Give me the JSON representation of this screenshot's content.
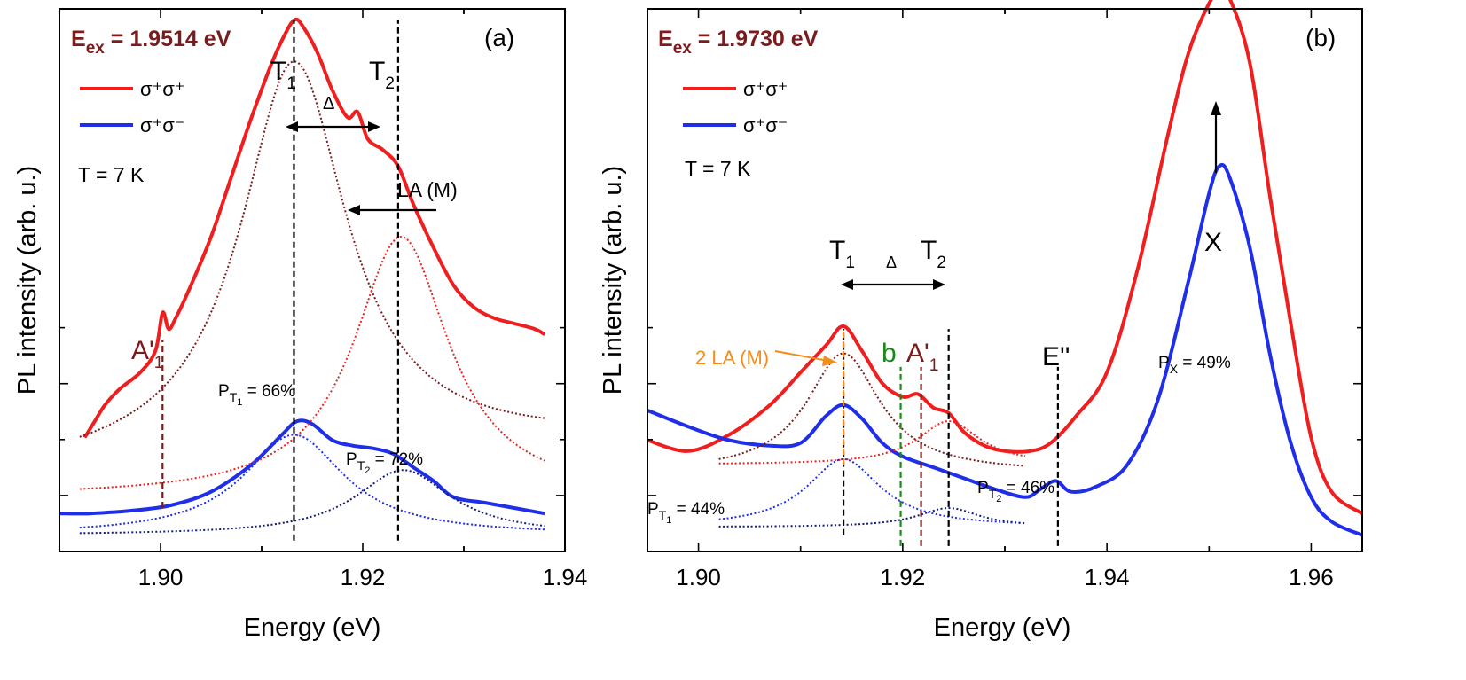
{
  "colors": {
    "red": "#ef1f1f",
    "blue": "#1f2ee8",
    "darkred": "#7b1b1b",
    "darkblue": "#141c7a",
    "orange": "#f28c1a",
    "green": "#1a8a1a",
    "black": "#000000"
  },
  "chart_data": [
    {
      "type": "line",
      "panel": "(a)",
      "excitation": {
        "main": "E",
        "sub": "ex",
        "rest": " = 1.9514 eV"
      },
      "temperature": "T = 7 K",
      "xlabel": "Energy (eV)",
      "ylabel": "PL intensity (arb. u.)",
      "xlim": [
        1.89,
        1.94
      ],
      "ylim": [
        0,
        10
      ],
      "x_ticks": [
        1.9,
        1.92,
        1.94
      ],
      "x_tick_labels": [
        "1.90",
        "1.92",
        "1.94"
      ],
      "legend": [
        {
          "label": "σ⁺σ⁺",
          "color": "#ef1f1f"
        },
        {
          "label": "σ⁺σ⁻",
          "color": "#1f2ee8"
        }
      ],
      "series": [
        {
          "name": "σ⁺σ⁺",
          "style": "solid",
          "color": "#ef1f1f",
          "x": [
            1.8925,
            1.8935,
            1.8945,
            1.896,
            1.898,
            1.8995,
            1.9002,
            1.9008,
            1.9015,
            1.903,
            1.905,
            1.907,
            1.909,
            1.911,
            1.9125,
            1.9133,
            1.914,
            1.9155,
            1.917,
            1.9185,
            1.9195,
            1.9205,
            1.922,
            1.9235,
            1.925,
            1.927,
            1.929,
            1.931,
            1.933,
            1.935,
            1.937,
            1.938
          ],
          "y": [
            2.1,
            2.4,
            2.7,
            3.0,
            3.3,
            3.7,
            4.4,
            4.1,
            4.3,
            4.9,
            5.8,
            6.9,
            8.0,
            9.0,
            9.6,
            9.8,
            9.7,
            9.2,
            8.5,
            8.0,
            8.1,
            7.6,
            7.4,
            7.1,
            6.4,
            5.6,
            4.9,
            4.5,
            4.3,
            4.2,
            4.1,
            4.0
          ]
        },
        {
          "name": "σ⁺σ⁻",
          "style": "solid",
          "color": "#1f2ee8",
          "x": [
            1.89,
            1.893,
            1.897,
            1.901,
            1.905,
            1.909,
            1.912,
            1.9135,
            1.915,
            1.917,
            1.919,
            1.921,
            1.923,
            1.925,
            1.927,
            1.929,
            1.932,
            1.935,
            1.938
          ],
          "y": [
            0.7,
            0.7,
            0.75,
            0.85,
            1.1,
            1.6,
            2.15,
            2.4,
            2.35,
            2.05,
            1.95,
            1.9,
            1.8,
            1.55,
            1.3,
            1.0,
            0.9,
            0.8,
            0.7
          ]
        },
        {
          "name": "T1 fit σ⁺σ⁺",
          "style": "dotted",
          "color": "#7b1b1b",
          "peak": {
            "x0": 1.9132,
            "amp": 7.3,
            "w": 0.0095,
            "base": 1.5,
            "slope": 0.5,
            "from": 1.892,
            "to": 1.938
          }
        },
        {
          "name": "T2 fit σ⁺σ⁺",
          "style": "dotted",
          "color": "#ef1f1f",
          "peak": {
            "x0": 1.9238,
            "amp": 4.8,
            "w": 0.0085,
            "base": 1.0,
            "slope": 0.0,
            "from": 1.892,
            "to": 1.938
          }
        },
        {
          "name": "T1 fit σ⁺σ⁻",
          "style": "dotted",
          "color": "#1f2ee8",
          "peak": {
            "x0": 1.9132,
            "amp": 1.85,
            "w": 0.009,
            "base": 0.3,
            "slope": 0.0,
            "from": 1.892,
            "to": 1.938
          }
        },
        {
          "name": "T2 fit σ⁺σ⁻",
          "style": "dotted",
          "color": "#141c7a",
          "peak": {
            "x0": 1.924,
            "amp": 1.2,
            "w": 0.0085,
            "base": 0.3,
            "slope": 0.0,
            "from": 1.892,
            "to": 1.938
          }
        }
      ],
      "vlines": [
        {
          "x": 1.9002,
          "y0": 0.8,
          "y1": 3.9,
          "color": "#7b1b1b",
          "label": "A'",
          "sub": "1"
        },
        {
          "x": 1.9132,
          "y0": 0.2,
          "y1": 9.8,
          "color": "#000000",
          "label": "T",
          "sub": "1"
        },
        {
          "x": 1.9235,
          "y0": 0.2,
          "y1": 9.8,
          "color": "#000000",
          "label": "T",
          "sub": "2"
        }
      ],
      "annotations": {
        "delta": "Δ",
        "la_label": "LA (M)",
        "p_t1": {
          "pre": "P",
          "sub": "T",
          "subsub": "1",
          "post": " = 66%"
        },
        "p_t2": {
          "pre": "P",
          "sub": "T",
          "subsub": "2",
          "post": " = 72%"
        }
      }
    },
    {
      "type": "line",
      "panel": "(b)",
      "excitation": {
        "main": "E",
        "sub": "ex",
        "rest": " = 1.9730 eV"
      },
      "temperature": "T = 7 K",
      "xlabel": "Energy (eV)",
      "ylabel": "PL intensity (arb. u.)",
      "xlim": [
        1.895,
        1.965
      ],
      "ylim": [
        0,
        10
      ],
      "x_ticks": [
        1.9,
        1.92,
        1.94,
        1.96
      ],
      "x_tick_labels": [
        "1.90",
        "1.92",
        "1.94",
        "1.96"
      ],
      "legend": [
        {
          "label": "σ⁺σ⁺",
          "color": "#ef1f1f"
        },
        {
          "label": "σ⁺σ⁻",
          "color": "#1f2ee8"
        }
      ],
      "series": [
        {
          "name": "σ⁺σ⁺",
          "style": "solid",
          "color": "#ef1f1f",
          "x": [
            1.895,
            1.899,
            1.903,
            1.907,
            1.91,
            1.9125,
            1.9142,
            1.916,
            1.918,
            1.92,
            1.9215,
            1.923,
            1.9245,
            1.926,
            1.928,
            1.93,
            1.9325,
            1.9345,
            1.937,
            1.94,
            1.943,
            1.946,
            1.948,
            1.95,
            1.951,
            1.952,
            1.954,
            1.956,
            1.958,
            1.96,
            1.962,
            1.965
          ],
          "y": [
            2.05,
            1.85,
            2.15,
            2.7,
            3.3,
            3.8,
            4.15,
            3.7,
            3.1,
            2.85,
            2.9,
            2.65,
            2.55,
            2.2,
            1.95,
            1.85,
            1.85,
            2.0,
            2.5,
            3.3,
            5.2,
            7.7,
            9.2,
            10.1,
            10.3,
            10.2,
            9.0,
            6.5,
            4.2,
            2.1,
            1.1,
            0.7
          ]
        },
        {
          "name": "σ⁺σ⁻",
          "style": "solid",
          "color": "#1f2ee8",
          "x": [
            1.895,
            1.899,
            1.903,
            1.907,
            1.91,
            1.9125,
            1.9142,
            1.916,
            1.918,
            1.92,
            1.923,
            1.926,
            1.929,
            1.932,
            1.9335,
            1.935,
            1.9365,
            1.939,
            1.942,
            1.945,
            1.948,
            1.95,
            1.951,
            1.952,
            1.954,
            1.956,
            1.958,
            1.96,
            1.962,
            1.965
          ],
          "y": [
            2.6,
            2.3,
            2.05,
            1.95,
            2.0,
            2.5,
            2.7,
            2.45,
            2.0,
            1.75,
            1.55,
            1.35,
            1.15,
            1.0,
            1.15,
            1.3,
            1.1,
            1.2,
            1.6,
            2.8,
            5.0,
            6.6,
            7.1,
            6.9,
            5.6,
            3.6,
            2.0,
            1.0,
            0.55,
            0.3
          ]
        },
        {
          "name": "T1 fit σ⁺σ⁺",
          "style": "dotted",
          "color": "#7b1b1b",
          "peak": {
            "x0": 1.9142,
            "amp": 2.2,
            "w": 0.0065,
            "base": 1.45,
            "slope": 0.0,
            "from": 1.902,
            "to": 1.932
          }
        },
        {
          "name": "T2 fit σ⁺σ⁺",
          "style": "dotted",
          "color": "#ef1f1f",
          "peak": {
            "x0": 1.9245,
            "amp": 0.8,
            "w": 0.0055,
            "base": 1.6,
            "slope": 0.0,
            "from": 1.902,
            "to": 1.932
          }
        },
        {
          "name": "T1 fit σ⁺σ⁻",
          "style": "dotted",
          "color": "#1f2ee8",
          "peak": {
            "x0": 1.9142,
            "amp": 1.25,
            "w": 0.0065,
            "base": 0.45,
            "slope": 0.0,
            "from": 1.902,
            "to": 1.932
          }
        },
        {
          "name": "T2 fit σ⁺σ⁻",
          "style": "dotted",
          "color": "#141c7a",
          "peak": {
            "x0": 1.9245,
            "amp": 0.35,
            "w": 0.0055,
            "base": 0.45,
            "slope": 0.0,
            "from": 1.902,
            "to": 1.932
          }
        }
      ],
      "vlines": [
        {
          "x": 1.9142,
          "y0": 0.3,
          "y1": 4.1,
          "color": "#000000",
          "label": "T",
          "sub": "1"
        },
        {
          "x": 1.9142,
          "y0": 1.6,
          "y1": 4.1,
          "color": "#f28c1a",
          "label": "",
          "sub": ""
        },
        {
          "x": 1.9198,
          "y0": 0.1,
          "y1": 3.4,
          "color": "#1a8a1a",
          "label": "b",
          "sub": ""
        },
        {
          "x": 1.9218,
          "y0": 0.1,
          "y1": 3.4,
          "color": "#7b1b1b",
          "label": "A'",
          "sub": "1"
        },
        {
          "x": 1.9245,
          "y0": 0.1,
          "y1": 4.1,
          "color": "#000000",
          "label": "T",
          "sub": "2"
        },
        {
          "x": 1.9352,
          "y0": 0.1,
          "y1": 3.4,
          "color": "#000000",
          "label": "E''",
          "sub": ""
        }
      ],
      "annotations": {
        "delta": "Δ",
        "two_la": "2 LA (M)",
        "x_label": "X",
        "p_t1": {
          "pre": "P",
          "sub": "T",
          "subsub": "1",
          "post": " = 44%"
        },
        "p_t2": {
          "pre": "P",
          "sub": "T",
          "subsub": "2",
          "post": " = 46%"
        },
        "p_x": {
          "pre": "P",
          "sub": "X",
          "post": " = 49%"
        }
      }
    }
  ]
}
